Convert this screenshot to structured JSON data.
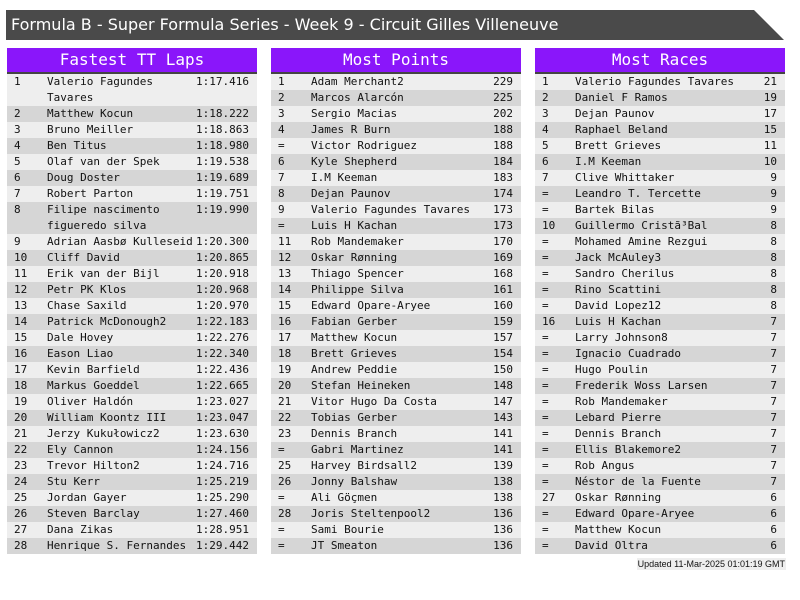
{
  "title": "Formula B - Super Formula Series - Week 9 - Circuit Gilles Villeneuve",
  "colors": {
    "header": "#8a16fa",
    "titlebar": "#4a4a4a",
    "row_light": "#eeeeee",
    "row_dark": "#d6d6d6"
  },
  "panels": [
    {
      "title": "Fastest TT Laps",
      "rows": [
        [
          "1",
          "Valerio Fagundes Tavares",
          "1:17.416"
        ],
        [
          "2",
          "Matthew Kocun",
          "1:18.222"
        ],
        [
          "3",
          "Bruno Meiller",
          "1:18.863"
        ],
        [
          "4",
          "Ben Titus",
          "1:18.980"
        ],
        [
          "5",
          "Olaf van der Spek",
          "1:19.538"
        ],
        [
          "6",
          "Doug Doster",
          "1:19.689"
        ],
        [
          "7",
          "Robert Parton",
          "1:19.751"
        ],
        [
          "8",
          "Filipe nascimento figueredo silva",
          "1:19.990"
        ],
        [
          "9",
          "Adrian Aasbø Kulleseid",
          "1:20.300"
        ],
        [
          "10",
          "Cliff David",
          "1:20.865"
        ],
        [
          "11",
          "Erik van der Bijl",
          "1:20.918"
        ],
        [
          "12",
          "Petr PK Klos",
          "1:20.968"
        ],
        [
          "13",
          "Chase Saxild",
          "1:20.970"
        ],
        [
          "14",
          "Patrick McDonough2",
          "1:22.183"
        ],
        [
          "15",
          "Dale Hovey",
          "1:22.276"
        ],
        [
          "16",
          "Eason Liao",
          "1:22.340"
        ],
        [
          "17",
          "Kevin Barfield",
          "1:22.436"
        ],
        [
          "18",
          "Markus Goeddel",
          "1:22.665"
        ],
        [
          "19",
          "Oliver Haldón",
          "1:23.027"
        ],
        [
          "20",
          "William Koontz III",
          "1:23.047"
        ],
        [
          "21",
          "Jerzy Kukułowicz2",
          "1:23.630"
        ],
        [
          "22",
          "Ely Cannon",
          "1:24.156"
        ],
        [
          "23",
          "Trevor Hilton2",
          "1:24.716"
        ],
        [
          "24",
          "Stu Kerr",
          "1:25.219"
        ],
        [
          "25",
          "Jordan Gayer",
          "1:25.290"
        ],
        [
          "26",
          "Steven Barclay",
          "1:27.460"
        ],
        [
          "27",
          "Dana Zikas",
          "1:28.951"
        ],
        [
          "28",
          "Henrique S. Fernandes",
          "1:29.442"
        ]
      ]
    },
    {
      "title": "Most Points",
      "rows": [
        [
          "1",
          "Adam Merchant2",
          "229"
        ],
        [
          "2",
          "Marcos Alarcón",
          "225"
        ],
        [
          "3",
          "Sergio Macias",
          "202"
        ],
        [
          "4",
          "James R Burn",
          "188"
        ],
        [
          "=",
          "Victor Rodriguez",
          "188"
        ],
        [
          "6",
          "Kyle Shepherd",
          "184"
        ],
        [
          "7",
          "I.M Keeman",
          "183"
        ],
        [
          "8",
          "Dejan Paunov",
          "174"
        ],
        [
          "9",
          "Valerio Fagundes Tavares",
          "173"
        ],
        [
          "=",
          "Luis H Kachan",
          "173"
        ],
        [
          "11",
          "Rob Mandemaker",
          "170"
        ],
        [
          "12",
          "Oskar Rønning",
          "169"
        ],
        [
          "13",
          "Thiago Spencer",
          "168"
        ],
        [
          "14",
          "Philippe Silva",
          "161"
        ],
        [
          "15",
          "Edward Opare-Aryee",
          "160"
        ],
        [
          "16",
          "Fabian Gerber",
          "159"
        ],
        [
          "17",
          "Matthew Kocun",
          "157"
        ],
        [
          "18",
          "Brett Grieves",
          "154"
        ],
        [
          "19",
          "Andrew Peddie",
          "150"
        ],
        [
          "20",
          "Stefan Heineken",
          "148"
        ],
        [
          "21",
          "Vitor Hugo Da Costa",
          "147"
        ],
        [
          "22",
          "Tobias Gerber",
          "143"
        ],
        [
          "23",
          "Dennis Branch",
          "141"
        ],
        [
          "=",
          "Gabri Martinez",
          "141"
        ],
        [
          "25",
          "Harvey Birdsall2",
          "139"
        ],
        [
          "26",
          "Jonny Balshaw",
          "138"
        ],
        [
          "=",
          "Ali Göçmen",
          "138"
        ],
        [
          "28",
          "Joris Steltenpool2",
          "136"
        ],
        [
          "=",
          "Sami Bourie",
          "136"
        ],
        [
          "=",
          "JT Smeaton",
          "136"
        ]
      ]
    },
    {
      "title": "Most Races",
      "rows": [
        [
          "1",
          "Valerio Fagundes Tavares",
          "21"
        ],
        [
          "2",
          "Daniel F Ramos",
          "19"
        ],
        [
          "3",
          "Dejan Paunov",
          "17"
        ],
        [
          "4",
          "Raphael Beland",
          "15"
        ],
        [
          "5",
          "Brett Grieves",
          "11"
        ],
        [
          "6",
          "I.M Keeman",
          "10"
        ],
        [
          "7",
          "Clive Whittaker",
          "9"
        ],
        [
          "=",
          "Leandro T. Tercette",
          "9"
        ],
        [
          "=",
          "Bartek Bilas",
          "9"
        ],
        [
          "10",
          "Guillermo Cristã³Bal",
          "8"
        ],
        [
          "=",
          "Mohamed Amine Rezgui",
          "8"
        ],
        [
          "=",
          "Jack McAuley3",
          "8"
        ],
        [
          "=",
          "Sandro Cherilus",
          "8"
        ],
        [
          "=",
          "Rino Scattini",
          "8"
        ],
        [
          "=",
          "David Lopez12",
          "8"
        ],
        [
          "16",
          "Luis H Kachan",
          "7"
        ],
        [
          "=",
          "Larry Johnson8",
          "7"
        ],
        [
          "=",
          "Ignacio Cuadrado",
          "7"
        ],
        [
          "=",
          "Hugo Poulin",
          "7"
        ],
        [
          "=",
          "Frederik Woss Larsen",
          "7"
        ],
        [
          "=",
          "Rob Mandemaker",
          "7"
        ],
        [
          "=",
          "Lebard Pierre",
          "7"
        ],
        [
          "=",
          "Dennis Branch",
          "7"
        ],
        [
          "=",
          "Ellis Blakemore2",
          "7"
        ],
        [
          "=",
          "Rob Angus",
          "7"
        ],
        [
          "=",
          "Néstor de la Fuente",
          "7"
        ],
        [
          "27",
          "Oskar Rønning",
          "6"
        ],
        [
          "=",
          "Edward Opare-Aryee",
          "6"
        ],
        [
          "=",
          "Matthew Kocun",
          "6"
        ],
        [
          "=",
          "David Oltra",
          "6"
        ]
      ]
    }
  ],
  "updated": "Updated 11-Mar-2025 01:01:19 GMT"
}
